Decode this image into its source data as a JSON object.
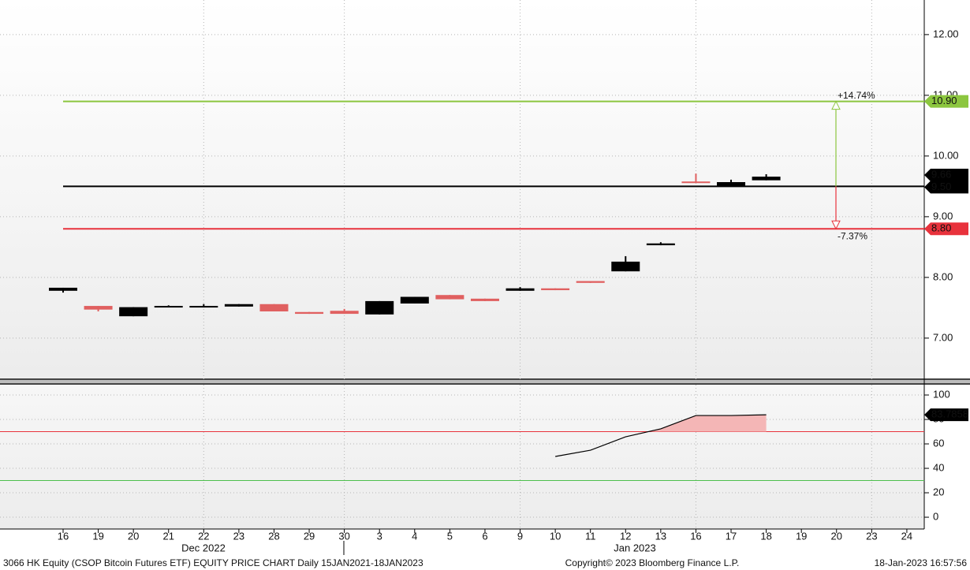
{
  "chart_data": [
    {
      "type": "candlestick",
      "categories": [
        "16",
        "19",
        "20",
        "21",
        "22",
        "23",
        "28",
        "29",
        "30",
        "3",
        "4",
        "5",
        "6",
        "9",
        "10",
        "11",
        "12",
        "13",
        "16",
        "17",
        "18",
        "19",
        "20",
        "23",
        "24"
      ],
      "open": [
        7.78,
        7.53,
        7.36,
        7.51,
        7.51,
        7.52,
        7.56,
        7.43,
        7.45,
        7.39,
        7.57,
        7.71,
        7.65,
        7.78,
        7.82,
        7.94,
        8.1,
        8.53,
        9.58,
        9.51,
        9.6,
        null,
        null,
        null,
        null
      ],
      "high": [
        7.83,
        7.53,
        7.51,
        7.54,
        7.56,
        7.56,
        7.56,
        7.43,
        7.48,
        7.61,
        7.68,
        7.71,
        7.65,
        7.84,
        7.82,
        7.94,
        8.35,
        8.58,
        9.71,
        9.61,
        9.7,
        null,
        null,
        null,
        null
      ],
      "low": [
        7.75,
        7.44,
        7.36,
        7.51,
        7.51,
        7.52,
        7.44,
        7.4,
        7.4,
        7.39,
        7.57,
        7.64,
        7.61,
        7.78,
        7.79,
        7.91,
        8.1,
        8.53,
        9.56,
        9.51,
        9.6,
        null,
        null,
        null,
        null
      ],
      "close": [
        7.83,
        7.47,
        7.51,
        7.53,
        7.53,
        7.56,
        7.44,
        7.4,
        7.4,
        7.61,
        7.68,
        7.64,
        7.61,
        7.82,
        7.79,
        7.91,
        8.26,
        8.56,
        9.56,
        9.57,
        9.66,
        null,
        null,
        null,
        null
      ],
      "up_color": "#000000",
      "down_color": "#e06060",
      "ylim": [
        6.31,
        12.57
      ],
      "yticks": [
        {
          "value": 7,
          "label": "7.00"
        },
        {
          "value": 8,
          "label": "8.00"
        },
        {
          "value": 9,
          "label": "9.00"
        },
        {
          "value": 10,
          "label": "10.00"
        },
        {
          "value": 11,
          "label": "11.00"
        },
        {
          "value": 12,
          "label": "12.00"
        }
      ],
      "grid": true,
      "hlines": [
        {
          "value": 10.9,
          "label": "10.90",
          "color": "#8cc63f"
        },
        {
          "value": 9.5,
          "label": "9.50",
          "color": "#000000"
        },
        {
          "value": 8.8,
          "label": "8.80",
          "color": "#e8323c"
        }
      ],
      "annotations": [
        {
          "text": "+14.74%",
          "color": "#8cc63f"
        },
        {
          "text": "-7.37%",
          "color": "#e8323c"
        }
      ],
      "x_groups": [
        "Dec 2022",
        "Jan 2023"
      ]
    },
    {
      "type": "line",
      "values": [
        null,
        null,
        null,
        null,
        null,
        null,
        null,
        null,
        null,
        null,
        null,
        null,
        null,
        null,
        49.7,
        54.8,
        65.8,
        72.3,
        83.2,
        83.2,
        83.7858,
        null,
        null,
        null,
        null
      ],
      "color": "#000000",
      "fill_above": 70,
      "fill_color": "#f4b6b6",
      "ylim": [
        -9,
        108.4
      ],
      "yticks": [
        0,
        20,
        40,
        60,
        80,
        100
      ],
      "grid": true,
      "hlines": [
        {
          "value": 70,
          "color": "#e8323c"
        },
        {
          "value": 30,
          "color": "#4cbf4c"
        }
      ]
    }
  ],
  "footer": {
    "left": "3066 HK Equity (CSOP Bitcoin Futures ETF) EQUITY PRICE CHART  Daily 15JAN2021-18JAN2023",
    "center": "Copyright© 2023 Bloomberg Finance L.P.",
    "right": "18-Jan-2023 16:57:56"
  }
}
